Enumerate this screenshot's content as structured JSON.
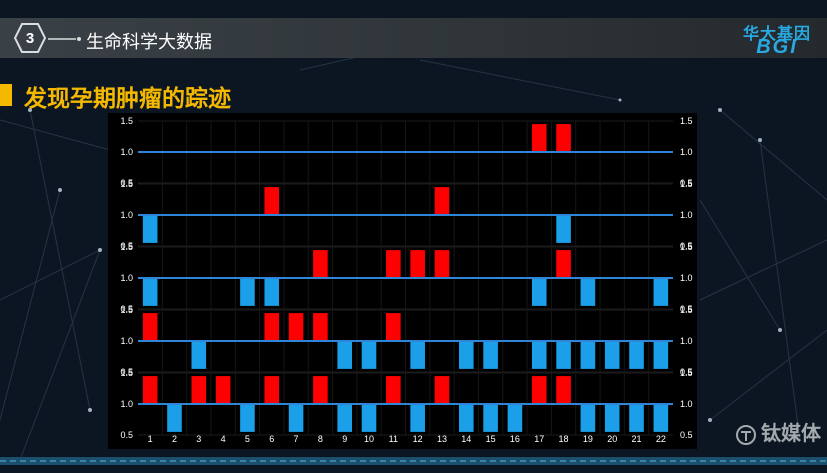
{
  "header": {
    "step_number": "3",
    "section_title": "生命科学大数据"
  },
  "logo": {
    "cn": "华大基因",
    "en": "BGI"
  },
  "slide_title": "发现孕期肿瘤的踪迹",
  "watermark": {
    "text": "钛媒体"
  },
  "colors": {
    "gain": "#ff0000",
    "loss": "#1a9fe8",
    "baseline": "#2f86d8",
    "title": "#f5b800",
    "brand": "#29a9e1"
  },
  "chart_data": {
    "type": "bar",
    "panels": 5,
    "ylim": [
      0.5,
      1.5
    ],
    "yticks": [
      "1.5",
      "1.0",
      "0.5"
    ],
    "categories": [
      "1",
      "2",
      "3",
      "4",
      "5",
      "6",
      "7",
      "8",
      "9",
      "10",
      "11",
      "12",
      "13",
      "14",
      "15",
      "16",
      "17",
      "18",
      "19",
      "20",
      "21",
      "22"
    ],
    "series": [
      {
        "values": [
          1.0,
          1.0,
          1.0,
          1.0,
          1.0,
          1.0,
          1.0,
          1.0,
          1.0,
          1.0,
          1.0,
          1.0,
          1.0,
          1.0,
          1.0,
          1.0,
          1.45,
          1.45,
          1.0,
          1.0,
          1.0,
          1.0
        ]
      },
      {
        "values": [
          0.55,
          1.0,
          1.0,
          1.0,
          1.0,
          1.45,
          1.0,
          1.0,
          1.0,
          1.0,
          1.0,
          1.0,
          1.45,
          1.0,
          1.0,
          1.0,
          1.0,
          0.55,
          1.0,
          1.0,
          1.0,
          1.0
        ]
      },
      {
        "values": [
          0.55,
          1.0,
          1.0,
          1.0,
          0.55,
          0.55,
          1.0,
          1.45,
          1.0,
          1.0,
          1.45,
          1.45,
          1.45,
          1.0,
          1.0,
          1.0,
          0.55,
          1.45,
          0.55,
          1.0,
          1.0,
          0.55
        ]
      },
      {
        "values": [
          1.45,
          1.0,
          0.55,
          1.0,
          1.0,
          1.45,
          1.45,
          1.45,
          0.55,
          0.55,
          1.45,
          0.55,
          1.0,
          0.55,
          0.55,
          1.0,
          0.55,
          0.55,
          0.55,
          0.55,
          0.55,
          0.55
        ]
      },
      {
        "values": [
          1.45,
          0.55,
          1.45,
          1.45,
          0.55,
          1.45,
          0.55,
          1.45,
          0.55,
          0.55,
          1.45,
          0.55,
          1.45,
          0.55,
          0.55,
          0.55,
          1.45,
          1.45,
          0.55,
          0.55,
          0.55,
          0.55
        ]
      }
    ]
  }
}
